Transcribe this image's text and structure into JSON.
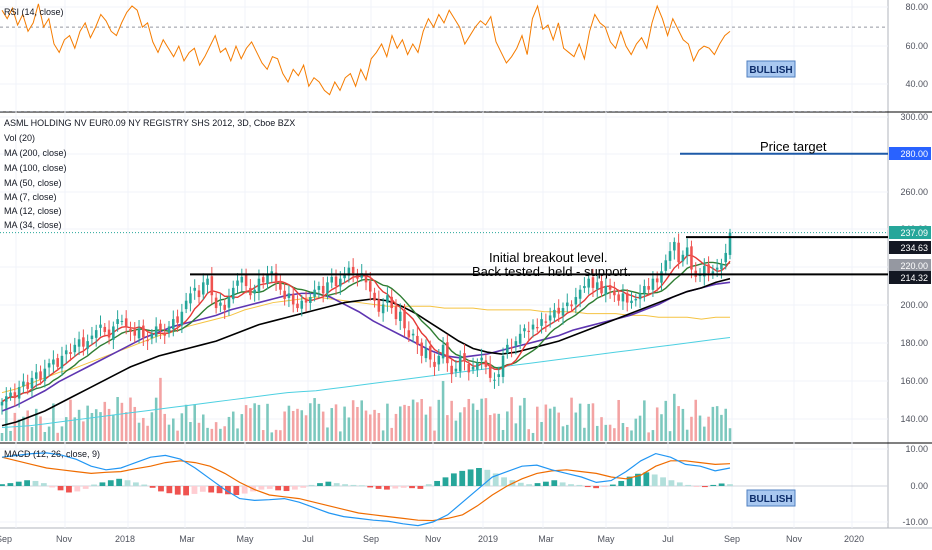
{
  "chart_data": [
    {
      "type": "line",
      "name": "rsi_panel",
      "legend": "RSI (14, close)",
      "ylim": [
        30,
        85
      ],
      "y_ticks": [
        "80.00",
        "60.00",
        "40.00"
      ],
      "reference_lines": [
        70,
        30
      ],
      "badge": "BULLISH",
      "values": [
        78,
        74,
        79,
        71,
        76,
        68,
        72,
        81,
        70,
        74,
        62,
        58,
        64,
        66,
        60,
        68,
        72,
        65,
        70,
        76,
        73,
        68,
        66,
        72,
        77,
        80,
        78,
        70,
        72,
        63,
        58,
        64,
        60,
        56,
        61,
        54,
        58,
        60,
        52,
        56,
        61,
        66,
        58,
        60,
        54,
        61,
        55,
        60,
        63,
        58,
        53,
        50,
        56,
        55,
        48,
        44,
        50,
        47,
        52,
        42,
        46,
        44,
        40,
        38,
        44,
        40,
        46,
        48,
        42,
        50,
        45,
        55,
        58,
        62,
        56,
        66,
        60,
        64,
        57,
        62,
        58,
        68,
        74,
        70,
        76,
        72,
        78,
        74,
        70,
        62,
        66,
        70,
        73,
        71,
        75,
        63,
        58,
        53,
        56,
        60,
        66,
        57,
        74,
        80,
        69,
        71,
        64,
        72,
        60,
        58,
        56,
        62,
        55,
        68,
        76,
        72,
        70,
        63,
        60,
        68,
        61,
        57,
        62,
        65,
        60,
        72,
        80,
        74,
        66,
        74,
        69,
        64,
        62,
        54,
        59,
        61,
        60,
        57,
        62,
        66,
        68
      ]
    },
    {
      "type": "candlestick",
      "name": "price_panel",
      "legend": [
        "ASML HOLDING NV EUR0.09 NY REGISTRY SHS 2012, 3D, Cboe BZX",
        "Vol (20)",
        "MA (200, close)",
        "MA (100, close)",
        "MA (50, close)",
        "MA (7, close)",
        "MA (12, close)",
        "MA (34, close)"
      ],
      "ylim": [
        130,
        300
      ],
      "y_ticks": [
        "300.00",
        "260.00",
        "240.00",
        "200.00",
        "180.00",
        "160.00",
        "140.00"
      ],
      "price_tags": [
        {
          "label": "280.00",
          "value": 280,
          "color": "#2962ff"
        },
        {
          "label": "237.09",
          "value": 237.09,
          "color": "#26a69a"
        },
        {
          "label": "234.63",
          "value": 234.63,
          "color": "#131722"
        },
        {
          "label": "220.00",
          "value": 220,
          "color": "#9598a1"
        },
        {
          "label": "214.32",
          "value": 214.32,
          "color": "#131722"
        }
      ],
      "levels": {
        "price_target": 280,
        "resistance": 234.63,
        "support": 214.32
      },
      "annotations": [
        "Price target",
        "Initial breakout level.",
        "Back tested- held - support."
      ],
      "closes": [
        145,
        148,
        150,
        147,
        153,
        156,
        152,
        158,
        161,
        157,
        163,
        166,
        168,
        164,
        170,
        173,
        171,
        176,
        179,
        175,
        178,
        181,
        184,
        187,
        183,
        180,
        186,
        190,
        189,
        186,
        183,
        181,
        185,
        180,
        178,
        182,
        186,
        184,
        181,
        186,
        190,
        188,
        194,
        200,
        204,
        207,
        202,
        210,
        212,
        203,
        196,
        199,
        195,
        202,
        207,
        211,
        213,
        208,
        203,
        206,
        212,
        210,
        214,
        216,
        210,
        206,
        201,
        204,
        198,
        196,
        200,
        199,
        202,
        206,
        208,
        204,
        210,
        213,
        208,
        212,
        214,
        218,
        215,
        212,
        215,
        210,
        205,
        200,
        194,
        198,
        203,
        196,
        190,
        194,
        185,
        180,
        182,
        176,
        170,
        174,
        168,
        164,
        170,
        176,
        166,
        160,
        163,
        170,
        167,
        161,
        164,
        166,
        169,
        164,
        158,
        157,
        160,
        170,
        176,
        174,
        178,
        182,
        185,
        183,
        187,
        185,
        190,
        188,
        192,
        195,
        193,
        196,
        199,
        197,
        202,
        206,
        208,
        212,
        207,
        210,
        204,
        208,
        206,
        203,
        200,
        204,
        199,
        200,
        201,
        204,
        208,
        206,
        212,
        210,
        216,
        222,
        227,
        232,
        221,
        225,
        229,
        217,
        213,
        214,
        219,
        215,
        216,
        218,
        220,
        226,
        237
      ],
      "ma_200": [
        131,
        131.5,
        132,
        133,
        134,
        135,
        136,
        137,
        138,
        139,
        140,
        141,
        142,
        143,
        144,
        145,
        146,
        147,
        148,
        149,
        150,
        150.5,
        151,
        152,
        153,
        154,
        155,
        156,
        157,
        158,
        159,
        160,
        161,
        162,
        163,
        164,
        165,
        166,
        167,
        168,
        169,
        170,
        171,
        172,
        173,
        174,
        175,
        176,
        177,
        178,
        179,
        180
      ],
      "ma_100": [
        150,
        152,
        155,
        158,
        161,
        163,
        166,
        169,
        172,
        175,
        178,
        181,
        183,
        186,
        188,
        190,
        192,
        195,
        197,
        199,
        200,
        201,
        202,
        201,
        200,
        199,
        198,
        197,
        197,
        197,
        197,
        196,
        196,
        196,
        195,
        195,
        195,
        195,
        194,
        194,
        194,
        193,
        193,
        193,
        192,
        192,
        191,
        191,
        191,
        190,
        191,
        191
      ],
      "ma_50": [
        140,
        143,
        147,
        151,
        156,
        160,
        164,
        168,
        172,
        176,
        180,
        183,
        186,
        188,
        190,
        192,
        195,
        197,
        199,
        201,
        203,
        204,
        204,
        202,
        198,
        194,
        189,
        185,
        181,
        177,
        173,
        170,
        169,
        170,
        171,
        173,
        175,
        177,
        179,
        181,
        184,
        186,
        188,
        190,
        192,
        195,
        198,
        202,
        205,
        207,
        209,
        210
      ],
      "ma_34": [
        132,
        134,
        137,
        140,
        144,
        148,
        152,
        156,
        160,
        164,
        167,
        170,
        172,
        174,
        176,
        178,
        181,
        184,
        187,
        189,
        191,
        193,
        195,
        197,
        199,
        200,
        201,
        200,
        197,
        193,
        188,
        183,
        178,
        174,
        172,
        171,
        172,
        174,
        176,
        178,
        181,
        184,
        187,
        190,
        193,
        196,
        199,
        202,
        205,
        207,
        210,
        212
      ]
    },
    {
      "type": "bar",
      "name": "macd_panel",
      "legend": "MACD (12, 26, close, 9)",
      "ylim": [
        -11,
        11
      ],
      "y_ticks": [
        "10.00",
        "0.00",
        "-10.00"
      ],
      "badge": "BULLISH",
      "macd": [
        8,
        8.5,
        9,
        9.2,
        8.6,
        7.4,
        5.5,
        4.5,
        5.0,
        6.5,
        8.0,
        8.5,
        7.5,
        5.0,
        2.0,
        -1.0,
        -3.5,
        -4.0,
        -3.8,
        -3.5,
        -4.5,
        -6.0,
        -7.5,
        -8.5,
        -9.0,
        -9.5,
        -9.8,
        -10.5,
        -11.0,
        -10.0,
        -8.0,
        -4.5,
        -1.0,
        2.5,
        4.0,
        5.5,
        5.8,
        4.5,
        3.5,
        2.5,
        1.0,
        1.5,
        4.0,
        7.0,
        9.0,
        8.0,
        6.0,
        5.5,
        4.2,
        5.0
      ],
      "signal": [
        8.0,
        7.0,
        6.0,
        5.0,
        4.5,
        4.0,
        3.5,
        3.8,
        4.0,
        4.8,
        5.5,
        6.5,
        7.0,
        6.5,
        5.5,
        3.5,
        1.0,
        -1.0,
        -2.5,
        -3.0,
        -3.5,
        -4.5,
        -5.5,
        -6.5,
        -7.5,
        -8.0,
        -8.5,
        -9.0,
        -9.5,
        -9.6,
        -9.0,
        -8.0,
        -5.5,
        -2.5,
        0.0,
        2.0,
        3.5,
        4.2,
        4.5,
        4.0,
        3.5,
        2.5,
        2.0,
        3.0,
        5.5,
        7.0,
        7.0,
        6.5,
        6.0,
        6.2
      ],
      "histogram": [
        0.5,
        0.8,
        1.2,
        1.6,
        1.4,
        0.8,
        -0.4,
        -1.2,
        -1.8,
        -1.5,
        -0.8,
        0.4,
        1.0,
        1.6,
        2.0,
        1.6,
        1.0,
        0.4,
        -0.5,
        -1.5,
        -2.0,
        -2.4,
        -2.6,
        -2.2,
        -1.6,
        -1.8,
        -2.0,
        -2.3,
        -2.5,
        -2.1,
        -1.5,
        -1.0,
        -0.8,
        -1.2,
        -1.4,
        -1.0,
        -0.5,
        0.3,
        0.8,
        1.2,
        0.8,
        0.5,
        0.3,
        0.2,
        -0.4,
        -0.8,
        -1.0,
        -0.7,
        -0.5,
        -0.6,
        -0.8,
        0.5,
        1.4,
        2.4,
        3.5,
        4.2,
        4.6,
        5.0,
        4.5,
        3.5,
        2.4,
        1.6,
        0.9,
        0.5,
        0.8,
        1.2,
        1.6,
        1.0,
        0.5,
        0.3,
        -0.3,
        -0.6,
        -0.2,
        0.4,
        1.4,
        2.6,
        3.4,
        3.8,
        3.2,
        2.4,
        1.6,
        1.0,
        0.3,
        -0.2,
        -0.3,
        0.3,
        0.7,
        0.5
      ]
    }
  ],
  "time_axis": [
    "Sep",
    "Nov",
    "2018",
    "Mar",
    "May",
    "Jul",
    "Sep",
    "Nov",
    "2019",
    "Mar",
    "May",
    "Jul",
    "Sep",
    "Nov",
    "2020"
  ],
  "colors": {
    "up": "#26a69a",
    "down": "#ef5350",
    "rsi": "#f57c00",
    "ma_200": "#4dd0e1",
    "ma_100": "#f5c342",
    "ma_50": "#5e35b1",
    "ma_34": "#000000",
    "ma_12": "#2e7d32",
    "ma_7": "#e53935",
    "macd": "#2196f3",
    "signal": "#ef6c00",
    "target": "#1e5aa8"
  }
}
